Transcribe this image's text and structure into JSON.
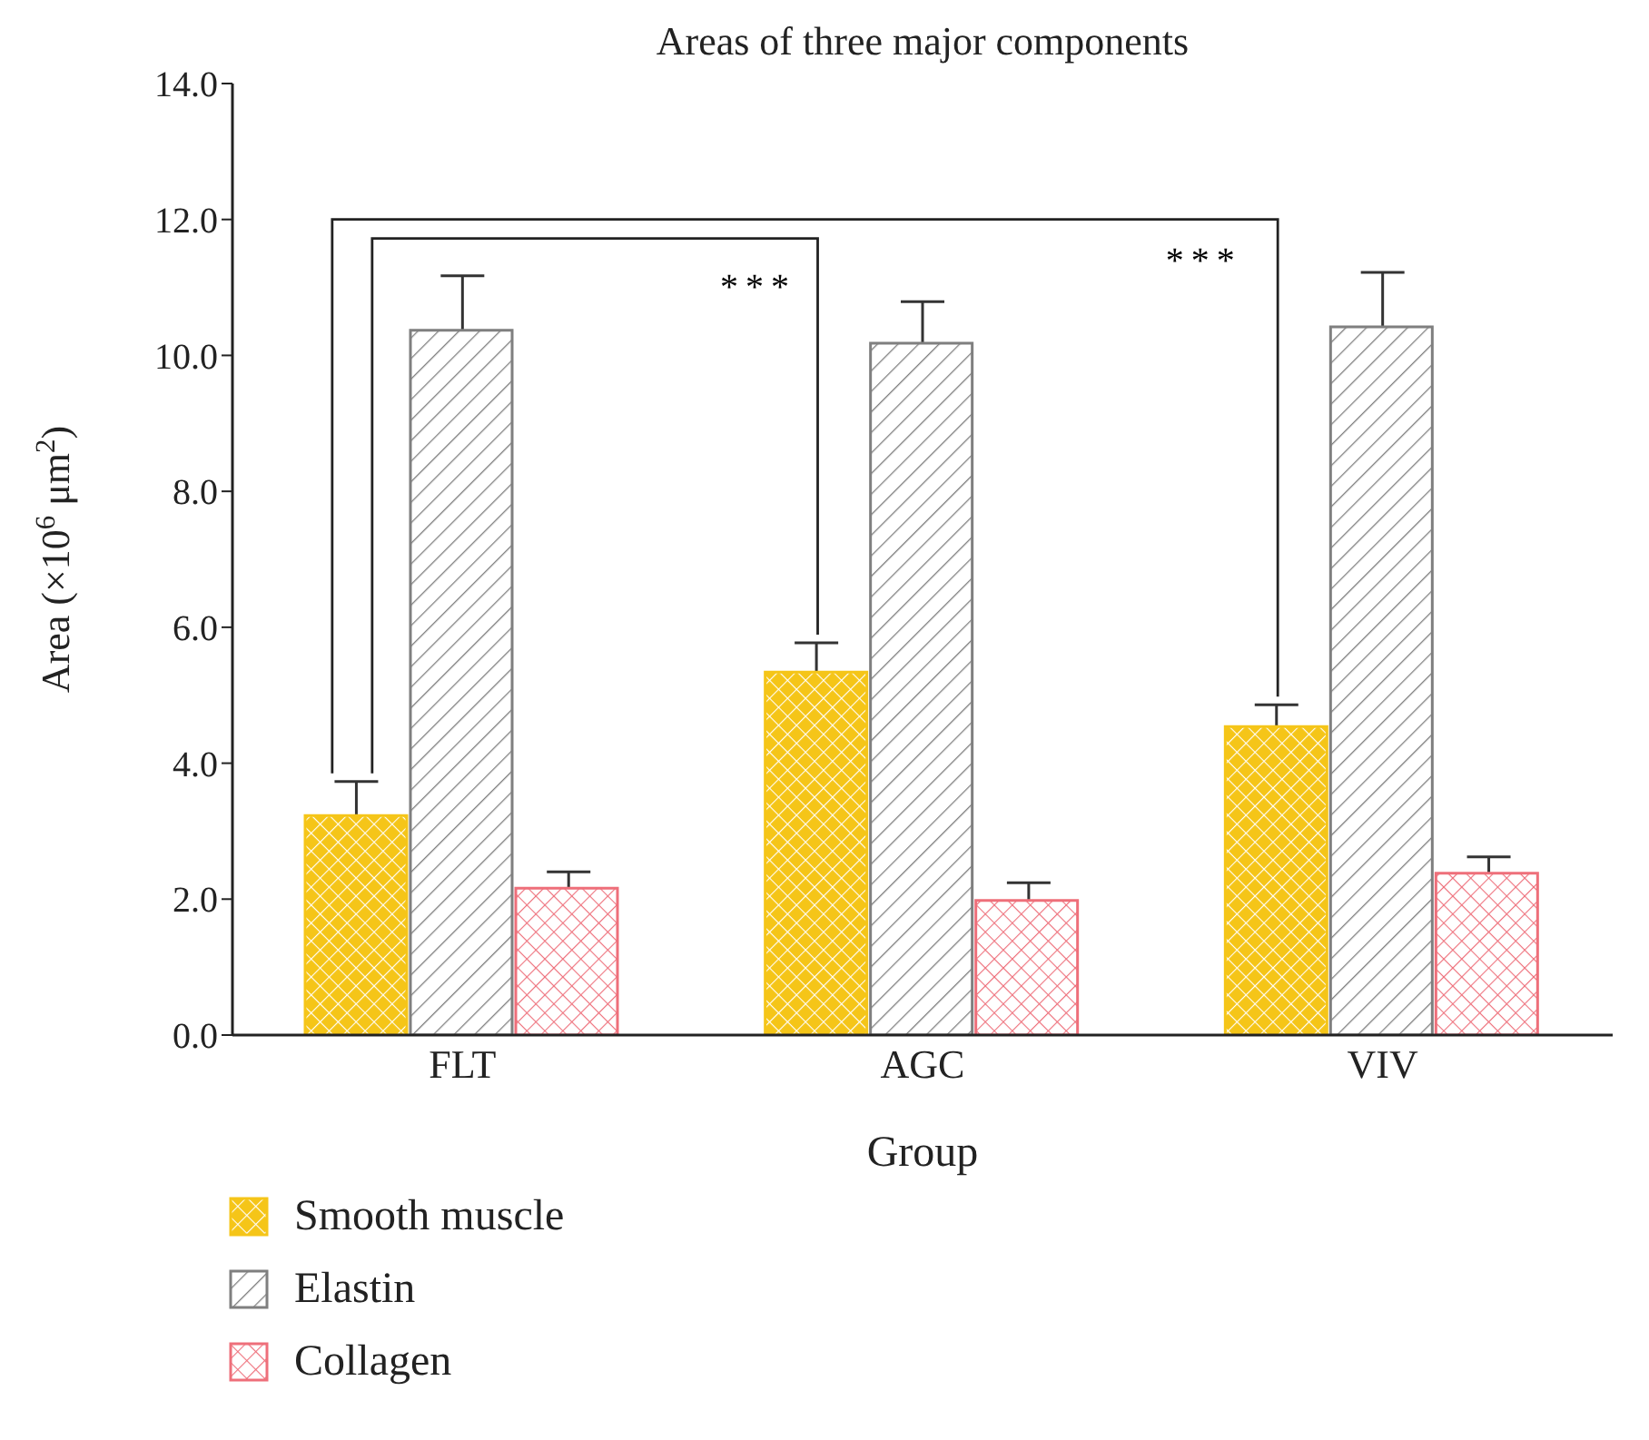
{
  "chart_data": {
    "type": "bar",
    "title": "Areas of three major components",
    "xlabel": "Group",
    "ylabel": "Area (×10$^{6}$ μm$^{2}$)",
    "categories": [
      "FLT",
      "AGC",
      "VIV"
    ],
    "series": [
      {
        "name": "Smooth muscle",
        "color": "#f5c518",
        "values": [
          3.23,
          5.34,
          4.54
        ],
        "errors": [
          [
            3.23,
            3.73
          ],
          [
            5.34,
            5.77
          ],
          [
            4.54,
            4.86
          ]
        ]
      },
      {
        "name": "Elastin",
        "color": "#7f7f7f",
        "values": [
          10.37,
          10.18,
          10.42
        ],
        "errors": [
          [
            10.37,
            11.17
          ],
          [
            10.18,
            10.79
          ],
          [
            10.42,
            11.22
          ]
        ]
      },
      {
        "name": "Collagen",
        "color": "#ee6f7a",
        "values": [
          2.16,
          1.98,
          2.38
        ],
        "errors": [
          [
            2.16,
            2.4
          ],
          [
            1.98,
            2.24
          ],
          [
            2.38,
            2.62
          ]
        ]
      }
    ],
    "ylim": [
      0,
      14
    ],
    "yticks": [
      {
        "value": 0,
        "label": "0.0"
      },
      {
        "value": 2,
        "label": "2.0"
      },
      {
        "value": 4,
        "label": "4.0"
      },
      {
        "value": 6,
        "label": "6.0"
      },
      {
        "value": 8,
        "label": "8.0"
      },
      {
        "value": 10,
        "label": "10.0"
      },
      {
        "value": 12,
        "label": "12.0"
      },
      {
        "value": 14,
        "label": "14.0"
      }
    ],
    "annotations": [
      "***",
      "***"
    ],
    "grid": false,
    "legend": "bottom left"
  }
}
